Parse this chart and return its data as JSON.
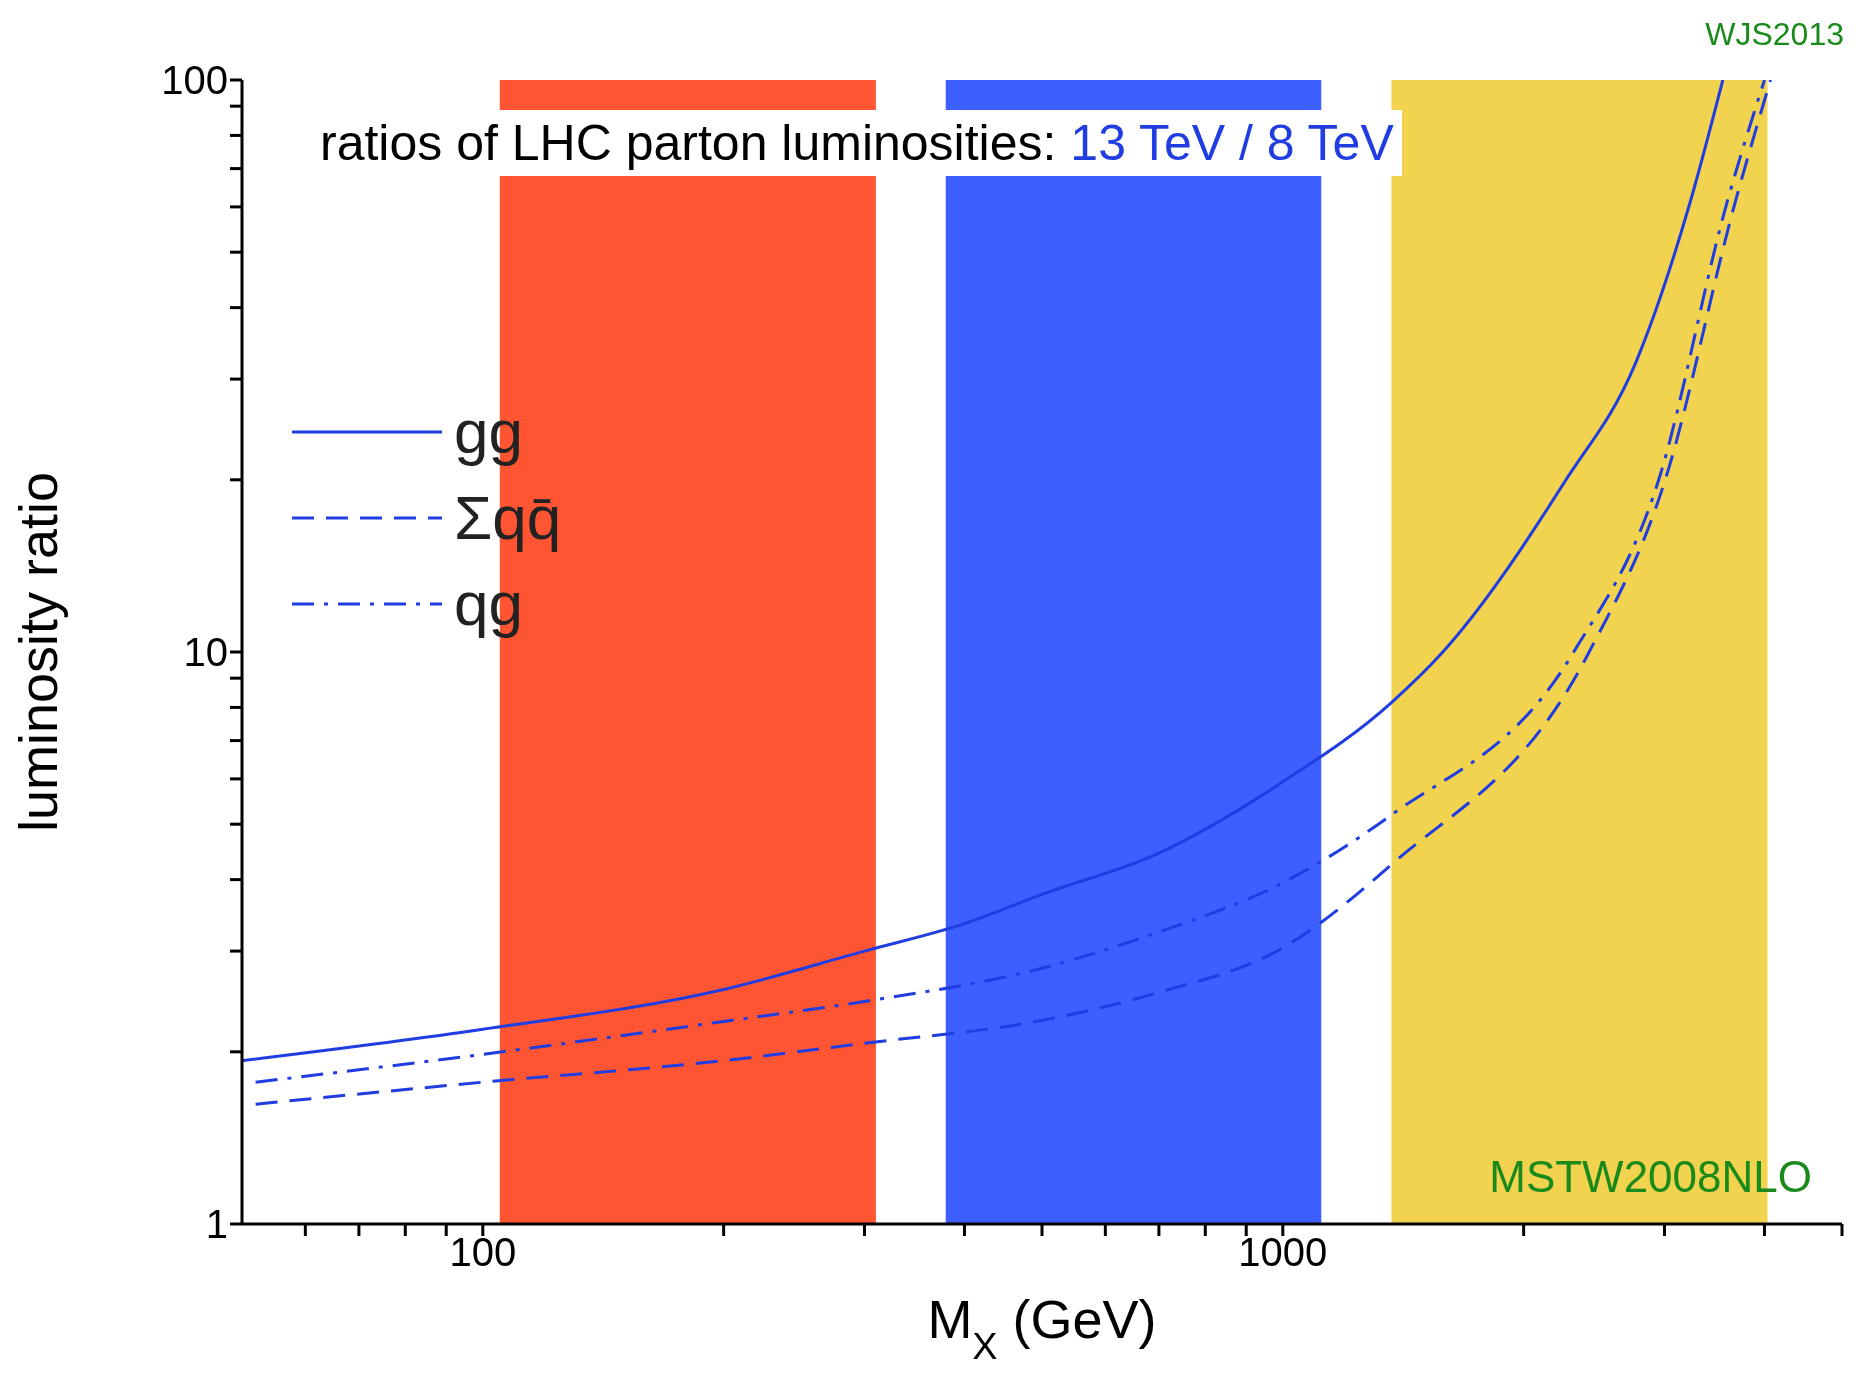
{
  "chart_data": {
    "type": "line",
    "title": "ratios of LHC parton luminosities:",
    "subtitle": "13 TeV / 8 TeV",
    "xlabel": "M$_{X}$ (GeV)",
    "ylabel": "luminosity ratio",
    "annotations": [
      "WJS2013",
      "MSTW2008NLO"
    ],
    "log": "xy",
    "legend": "left",
    "marker": "none",
    "xlim": [
      50,
      5000
    ],
    "xticks": [
      {
        "value": 60,
        "label": null
      },
      {
        "value": 70,
        "label": null
      },
      {
        "value": 80,
        "label": null
      },
      {
        "value": 90,
        "label": null
      },
      100,
      {
        "value": 200,
        "label": null
      },
      {
        "value": 300,
        "label": null
      },
      {
        "value": 400,
        "label": null
      },
      {
        "value": 500,
        "label": null
      },
      {
        "value": 600,
        "label": null
      },
      {
        "value": 700,
        "label": null
      },
      {
        "value": 800,
        "label": null
      },
      {
        "value": 900,
        "label": null
      },
      1000,
      {
        "value": 2000,
        "label": null
      },
      {
        "value": 3000,
        "label": null
      },
      {
        "value": 4000,
        "label": null
      },
      {
        "value": 5000,
        "label": null
      }
    ],
    "ylim": [
      1,
      100
    ],
    "yticks": [
      1,
      {
        "value": 2,
        "label": null
      },
      {
        "value": 3,
        "label": null
      },
      {
        "value": 4,
        "label": null
      },
      {
        "value": 5,
        "label": null
      },
      {
        "value": 6,
        "label": null
      },
      {
        "value": 7,
        "label": null
      },
      {
        "value": 8,
        "label": null
      },
      {
        "value": 9,
        "label": null
      },
      10,
      {
        "value": 20,
        "label": null
      },
      {
        "value": 30,
        "label": null
      },
      {
        "value": 40,
        "label": null
      },
      {
        "value": 50,
        "label": null
      },
      {
        "value": 60,
        "label": null
      },
      {
        "value": 70,
        "label": null
      },
      {
        "value": 80,
        "label": null
      },
      {
        "value": 90,
        "label": null
      },
      100
    ],
    "bands": [
      {
        "axis": "x",
        "from": 105,
        "to": 310,
        "color": "#ff5533"
      },
      {
        "axis": "x",
        "from": 379,
        "to": 1117,
        "color": "#3d5fff"
      },
      {
        "axis": "x",
        "from": 1367,
        "to": 4035,
        "color": "#f2d350"
      }
    ],
    "series": [
      {
        "name": "gg",
        "color": "#1f3de0",
        "line_style": "solid",
        "x": [
          50,
          100,
          200,
          300,
          400,
          500,
          700,
          1000,
          1367,
          1585,
          2254,
          2760,
          3228,
          3548
        ],
        "values": [
          1.93,
          2.19,
          2.57,
          3.0,
          3.35,
          3.77,
          4.45,
          5.93,
          8.16,
          10,
          19.9,
          32,
          61,
          100
        ]
      },
      {
        "name": "Σqq̄",
        "color": "#1f3de0",
        "line_style": "dashed",
        "x": [
          52,
          100,
          200,
          300,
          500,
          700,
          1000,
          1367,
          2415,
          3006,
          3675,
          4070
        ],
        "values": [
          1.62,
          1.77,
          1.93,
          2.07,
          2.27,
          2.54,
          3.04,
          4.25,
          10,
          20,
          61,
          100
        ]
      },
      {
        "name": "qg",
        "color": "#1f3de0",
        "line_style": "dashdot",
        "x": [
          52,
          100,
          200,
          300,
          500,
          700,
          1000,
          1367,
          2310,
          2950,
          3590,
          4000
        ],
        "values": [
          1.77,
          1.98,
          2.26,
          2.45,
          2.8,
          3.24,
          3.95,
          5.19,
          10,
          20,
          61,
          100
        ]
      }
    ]
  }
}
